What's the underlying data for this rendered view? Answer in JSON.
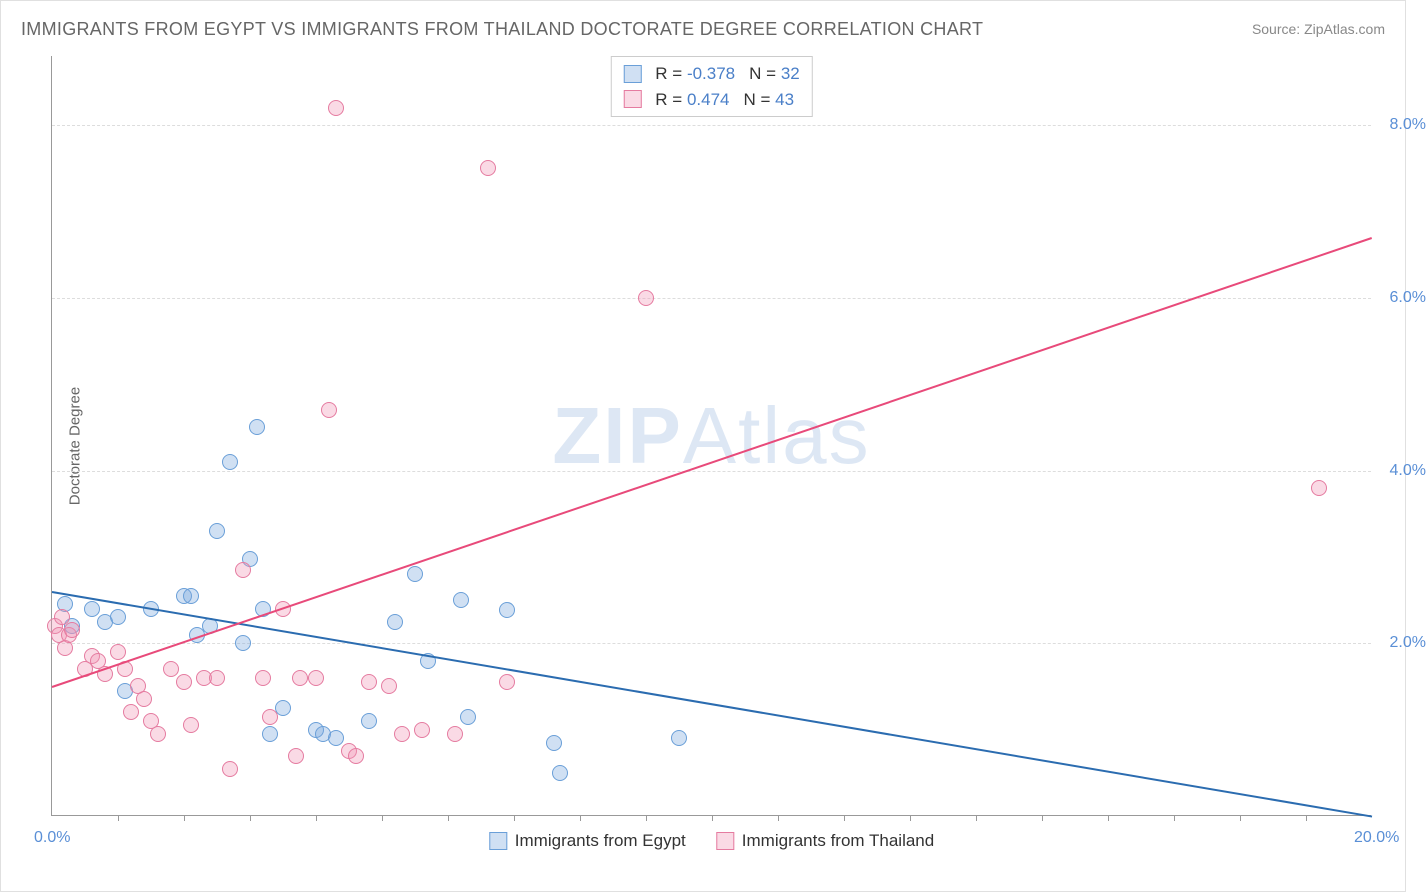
{
  "title": "IMMIGRANTS FROM EGYPT VS IMMIGRANTS FROM THAILAND DOCTORATE DEGREE CORRELATION CHART",
  "source": "Source: ZipAtlas.com",
  "watermark": {
    "bold": "ZIP",
    "light": "Atlas"
  },
  "y_axis_label": "Doctorate Degree",
  "chart": {
    "type": "scatter",
    "xlim": [
      0,
      20
    ],
    "ylim": [
      0,
      8.8
    ],
    "x_ticks": [
      0,
      20
    ],
    "x_tick_labels": [
      "0.0%",
      "20.0%"
    ],
    "y_ticks": [
      2,
      4,
      6,
      8
    ],
    "y_tick_labels": [
      "2.0%",
      "4.0%",
      "6.0%",
      "8.0%"
    ],
    "minor_x_ticks": [
      1,
      2,
      3,
      4,
      5,
      6,
      7,
      8,
      9,
      10,
      11,
      12,
      13,
      14,
      15,
      16,
      17,
      18,
      19
    ],
    "background_color": "#ffffff",
    "grid_color": "#dddddd",
    "axis_color": "#999999",
    "marker_radius": 8,
    "series": [
      {
        "name": "Immigrants from Egypt",
        "fill": "rgba(120,165,220,0.35)",
        "stroke": "#6a9fd8",
        "trend_color": "#2b6cb0",
        "trend": {
          "x1": 0,
          "y1": 2.6,
          "x2": 20,
          "y2": 0.0
        },
        "R": "-0.378",
        "N": "32",
        "points": [
          [
            0.2,
            2.45
          ],
          [
            0.3,
            2.2
          ],
          [
            0.6,
            2.4
          ],
          [
            0.8,
            2.25
          ],
          [
            1.0,
            2.3
          ],
          [
            1.1,
            1.45
          ],
          [
            1.5,
            2.4
          ],
          [
            2.0,
            2.55
          ],
          [
            2.1,
            2.55
          ],
          [
            2.2,
            2.1
          ],
          [
            2.4,
            2.2
          ],
          [
            2.5,
            3.3
          ],
          [
            2.7,
            4.1
          ],
          [
            3.0,
            2.98
          ],
          [
            3.1,
            4.5
          ],
          [
            3.2,
            2.4
          ],
          [
            3.3,
            0.95
          ],
          [
            3.5,
            1.25
          ],
          [
            4.0,
            1.0
          ],
          [
            4.1,
            0.95
          ],
          [
            4.3,
            0.9
          ],
          [
            4.8,
            1.1
          ],
          [
            5.2,
            2.25
          ],
          [
            5.5,
            2.8
          ],
          [
            5.7,
            1.8
          ],
          [
            6.2,
            2.5
          ],
          [
            6.3,
            1.15
          ],
          [
            6.9,
            2.38
          ],
          [
            7.6,
            0.85
          ],
          [
            7.7,
            0.5
          ],
          [
            9.5,
            0.9
          ],
          [
            2.9,
            2.0
          ]
        ]
      },
      {
        "name": "Immigrants from Thailand",
        "fill": "rgba(240,150,180,0.35)",
        "stroke": "#e57ba0",
        "trend_color": "#e84a7a",
        "trend": {
          "x1": 0,
          "y1": 1.5,
          "x2": 20,
          "y2": 6.7
        },
        "R": "0.474",
        "N": "43",
        "points": [
          [
            0.05,
            2.2
          ],
          [
            0.1,
            2.1
          ],
          [
            0.15,
            2.3
          ],
          [
            0.2,
            1.95
          ],
          [
            0.25,
            2.1
          ],
          [
            0.3,
            2.15
          ],
          [
            0.5,
            1.7
          ],
          [
            0.6,
            1.85
          ],
          [
            0.7,
            1.8
          ],
          [
            0.8,
            1.65
          ],
          [
            1.0,
            1.9
          ],
          [
            1.1,
            1.7
          ],
          [
            1.2,
            1.2
          ],
          [
            1.3,
            1.5
          ],
          [
            1.5,
            1.1
          ],
          [
            1.6,
            0.95
          ],
          [
            1.8,
            1.7
          ],
          [
            2.0,
            1.55
          ],
          [
            2.3,
            1.6
          ],
          [
            2.5,
            1.6
          ],
          [
            2.7,
            0.55
          ],
          [
            2.9,
            2.85
          ],
          [
            3.2,
            1.6
          ],
          [
            3.3,
            1.15
          ],
          [
            3.5,
            2.4
          ],
          [
            3.7,
            0.7
          ],
          [
            3.75,
            1.6
          ],
          [
            4.0,
            1.6
          ],
          [
            4.2,
            4.7
          ],
          [
            4.3,
            8.2
          ],
          [
            4.5,
            0.75
          ],
          [
            4.6,
            0.7
          ],
          [
            4.8,
            1.55
          ],
          [
            5.1,
            1.5
          ],
          [
            5.3,
            0.95
          ],
          [
            5.6,
            1.0
          ],
          [
            6.1,
            0.95
          ],
          [
            6.6,
            7.5
          ],
          [
            6.9,
            1.55
          ],
          [
            9.0,
            6.0
          ],
          [
            19.2,
            3.8
          ],
          [
            2.1,
            1.05
          ],
          [
            1.4,
            1.35
          ]
        ]
      }
    ]
  },
  "stats_box": {
    "label_R": "R =",
    "label_N": "N ="
  },
  "legend": {
    "egypt": "Immigrants from Egypt",
    "thailand": "Immigrants from Thailand"
  }
}
